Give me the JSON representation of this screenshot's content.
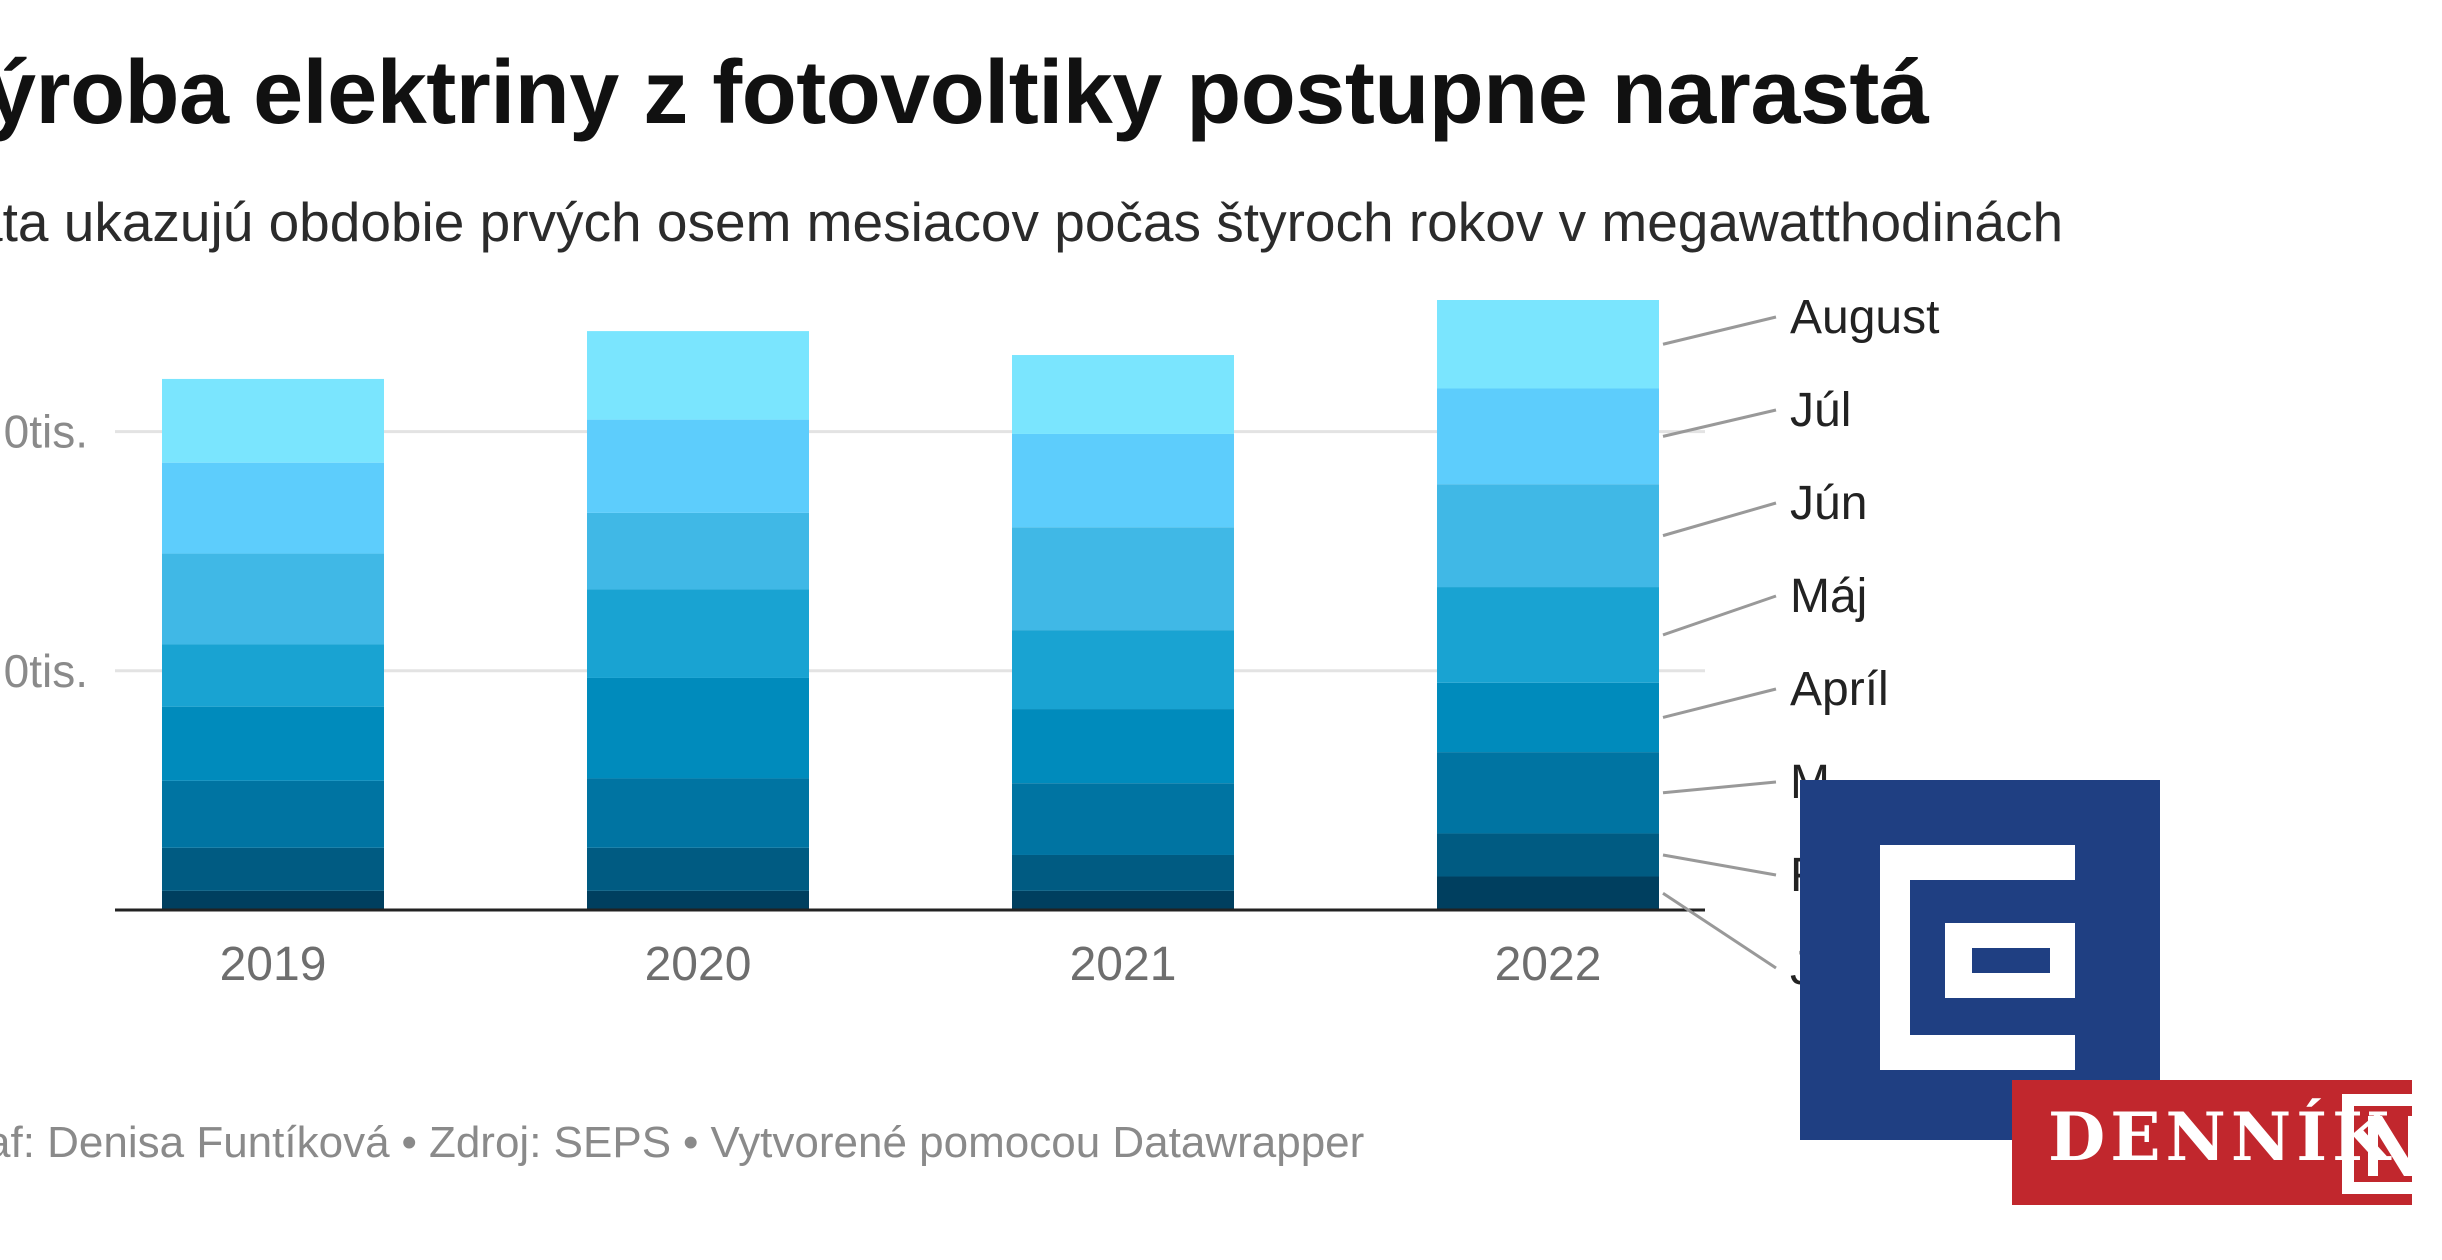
{
  "header": {
    "title": "ýroba elektriny z fotovoltiky postupne narastá",
    "subtitle": "ata ukazujú obdobie prvých osem mesiacov počas štyroch rokov v megawatthodinách"
  },
  "footer": {
    "author": "af: Denisa Funtíková",
    "source": "Zdroj: SEPS",
    "tool": "Vytvorené pomocou Datawrapper"
  },
  "brand": {
    "name": "DENNÍK",
    "logo_color": "#1f3f82",
    "banner_color": "#c1272d"
  },
  "chart_data": {
    "type": "bar",
    "stacked": true,
    "categories": [
      "2019",
      "2020",
      "2021",
      "2022"
    ],
    "series": [
      {
        "name": "Január",
        "color": "#003f5f",
        "values": [
          8000,
          8000,
          8000,
          14000
        ]
      },
      {
        "name": "Február",
        "color": "#005b82",
        "values": [
          18000,
          18000,
          15000,
          18000
        ]
      },
      {
        "name": "Marec",
        "color": "#0074a2",
        "values": [
          28000,
          29000,
          30000,
          34000
        ]
      },
      {
        "name": "Apríl",
        "color": "#008bbc",
        "values": [
          31000,
          42000,
          31000,
          29000
        ]
      },
      {
        "name": "Máj",
        "color": "#19a3d2",
        "values": [
          26000,
          37000,
          33000,
          40000
        ]
      },
      {
        "name": "Jún",
        "color": "#40b8e6",
        "values": [
          38000,
          32000,
          43000,
          43000
        ]
      },
      {
        "name": "Júl",
        "color": "#5dcdfc",
        "values": [
          38000,
          39000,
          39000,
          40000
        ]
      },
      {
        "name": "August",
        "color": "#7ae5fe",
        "values": [
          35000,
          37000,
          33000,
          37000
        ]
      }
    ],
    "legend_labels": [
      "August",
      "Júl",
      "Jún",
      "Máj",
      "Apríl",
      "M",
      "F",
      "J"
    ],
    "y_ticks": [
      {
        "value": 100000,
        "label": "0tis."
      },
      {
        "value": 200000,
        "label": "0tis."
      }
    ],
    "ylim": [
      0,
      255000
    ],
    "grid": true,
    "legend_placement": "right, labels connected to 2022 bar segments"
  }
}
